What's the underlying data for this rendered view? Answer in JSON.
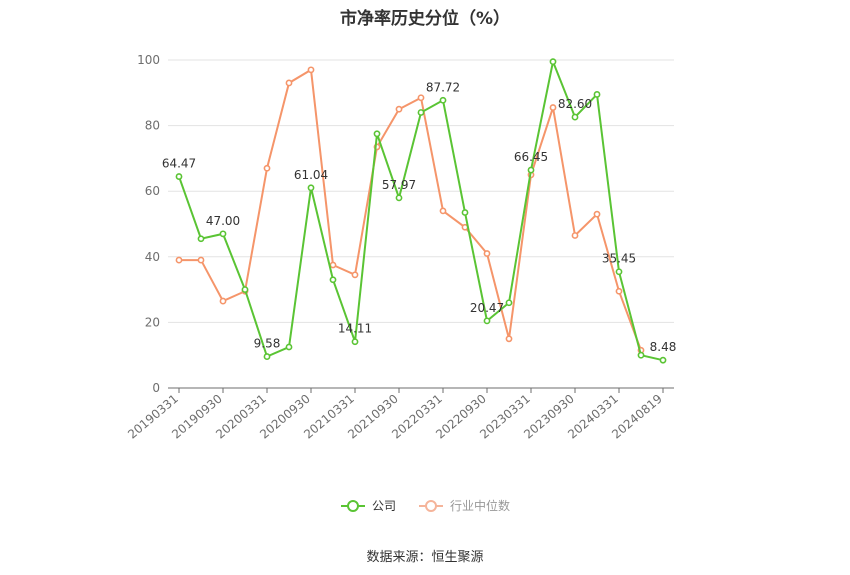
{
  "chart_data": {
    "type": "line",
    "title": "市净率历史分位（%）",
    "source": "数据来源：恒生聚源",
    "x_tick_labels": [
      "20190331",
      "20190930",
      "20200331",
      "20200930",
      "20210331",
      "20210930",
      "20220331",
      "20220930",
      "20230331",
      "20230930",
      "20240331",
      "20240819"
    ],
    "y_ticks": [
      0,
      20,
      40,
      60,
      80,
      100
    ],
    "ylim": [
      0,
      100
    ],
    "grid": true,
    "legend_position": "bottom",
    "series": [
      {
        "name": "公司",
        "color": "#5ac434",
        "values": [
          64.47,
          45.5,
          47.0,
          30.0,
          9.58,
          12.5,
          61.04,
          33.0,
          14.11,
          77.5,
          57.97,
          84.0,
          87.72,
          53.5,
          20.47,
          26.0,
          66.45,
          99.5,
          82.6,
          89.5,
          35.45,
          10.0,
          8.48
        ],
        "labels": {
          "0": "64.47",
          "2": "47.00",
          "4": "9.58",
          "6": "61.04",
          "8": "14.11",
          "10": "57.97",
          "12": "87.72",
          "14": "20.47",
          "16": "66.45",
          "18": "82.60",
          "20": "35.45",
          "22": "8.48"
        }
      },
      {
        "name": "行业中位数",
        "color": "#f5956a",
        "values": [
          39.0,
          39.0,
          26.5,
          29.5,
          67.0,
          93.0,
          97.0,
          37.5,
          34.5,
          73.5,
          85.0,
          88.5,
          54.0,
          49.0,
          41.0,
          15.0,
          65.0,
          85.5,
          46.5,
          53.0,
          29.5,
          11.5
        ]
      }
    ]
  }
}
